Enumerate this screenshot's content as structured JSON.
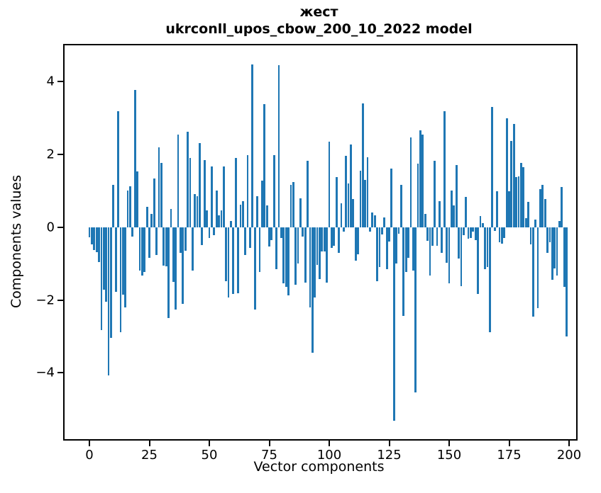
{
  "title": {
    "line1": "жест",
    "line2": "ukrconll_upos_cbow_200_10_2022 model"
  },
  "chart_data": {
    "type": "bar",
    "title": "жест",
    "subtitle": "ukrconll_upos_cbow_200_10_2022 model",
    "xlabel": "Vector components",
    "ylabel": "Components values",
    "bar_color": "#1f77b4",
    "axis_color": "#000000",
    "n_components": 200,
    "x_tick_values": [
      0,
      25,
      50,
      75,
      100,
      125,
      150,
      175,
      200
    ],
    "x_tick_labels": [
      "0",
      "25",
      "50",
      "75",
      "100",
      "125",
      "150",
      "175",
      "200"
    ],
    "y_tick_values": [
      4,
      2,
      0,
      -2,
      -4
    ],
    "y_tick_labels": [
      "4",
      "2",
      "0",
      "−2",
      "−4"
    ],
    "ylim": [
      -5.82,
      4.99
    ],
    "xlim": [
      -10.4,
      203.0
    ],
    "grid": false,
    "legend": "none",
    "values": [
      -0.28,
      -0.48,
      -0.62,
      -0.68,
      -0.95,
      -2.82,
      -1.72,
      -2.05,
      -4.08,
      -3.05,
      1.17,
      -1.78,
      3.18,
      -2.88,
      -1.85,
      -2.2,
      1.0,
      1.12,
      -0.25,
      3.77,
      1.53,
      -1.2,
      -1.32,
      -1.23,
      0.55,
      -0.84,
      0.36,
      1.34,
      -0.77,
      2.19,
      1.76,
      -1.06,
      -1.08,
      -2.49,
      0.5,
      -1.5,
      -2.26,
      2.55,
      -0.7,
      -2.1,
      -0.65,
      2.62,
      1.9,
      -1.2,
      0.9,
      0.85,
      2.3,
      -0.5,
      1.85,
      0.46,
      -0.3,
      1.66,
      -0.22,
      1.01,
      0.33,
      0.47,
      1.66,
      -1.49,
      -1.94,
      0.17,
      -1.84,
      1.9,
      -1.81,
      0.62,
      0.72,
      -0.77,
      1.98,
      -0.58,
      4.47,
      -2.26,
      0.85,
      -1.23,
      1.27,
      3.38,
      0.6,
      -0.54,
      -0.35,
      1.98,
      -1.16,
      4.45,
      -0.3,
      -1.55,
      -1.65,
      -1.87,
      1.17,
      1.24,
      -1.58,
      -1.0,
      0.8,
      -0.25,
      -1.52,
      1.82,
      -2.2,
      -3.45,
      -1.94,
      -1.03,
      -1.42,
      -0.67,
      -0.67,
      -1.52,
      2.35,
      -0.58,
      -0.51,
      1.37,
      -0.71,
      0.65,
      -0.12,
      1.95,
      1.21,
      2.28,
      0.78,
      -0.93,
      -0.74,
      1.56,
      3.39,
      1.3,
      1.92,
      -0.12,
      0.4,
      0.33,
      -1.49,
      -1.1,
      -0.2,
      0.27,
      -1.16,
      -0.4,
      1.6,
      -5.31,
      -1.0,
      -0.19,
      1.17,
      -2.43,
      -1.23,
      -0.85,
      2.47,
      -1.2,
      -4.53,
      1.74,
      2.65,
      2.54,
      0.36,
      -0.38,
      -1.32,
      -0.52,
      1.82,
      -0.52,
      0.72,
      -0.71,
      3.18,
      -0.97,
      -1.55,
      1.01,
      0.59,
      1.71,
      -0.87,
      -1.62,
      -0.22,
      0.84,
      -0.32,
      -0.29,
      -0.12,
      -0.35,
      -1.84,
      0.3,
      0.12,
      -1.16,
      -1.1,
      -2.88,
      3.31,
      -0.1,
      0.99,
      -0.42,
      -0.45,
      -0.29,
      3.0,
      0.99,
      2.37,
      2.83,
      1.37,
      1.4,
      1.76,
      1.64,
      0.25,
      0.69,
      -0.48,
      -2.45,
      0.2,
      -2.23,
      1.04,
      1.17,
      0.78,
      -0.71,
      -0.42,
      -1.45,
      -1.13,
      -1.32,
      0.17,
      1.11,
      -1.65,
      -3.0
    ]
  }
}
